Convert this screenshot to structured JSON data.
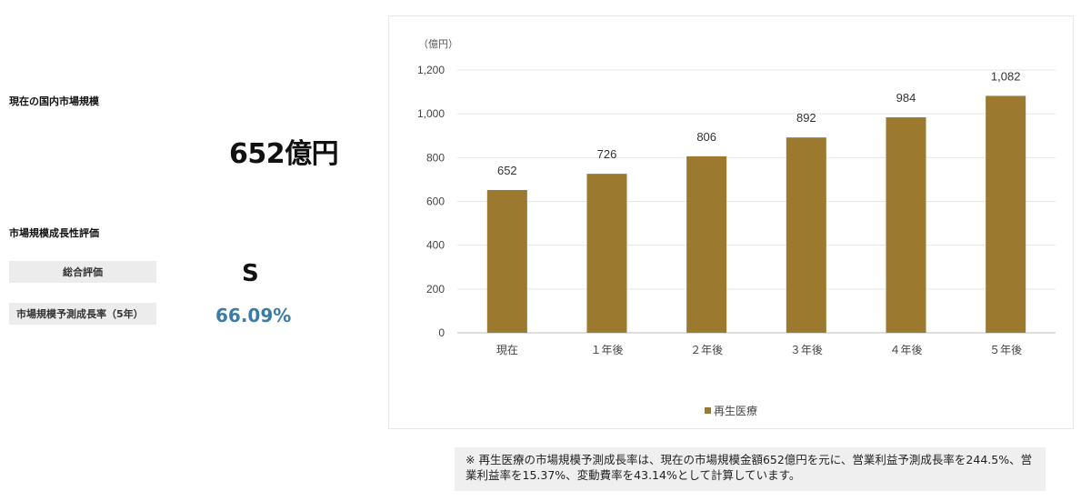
{
  "market": {
    "size_title": "現在の国内市場規模",
    "size_value": "652億円",
    "growth_title": "市場規模成長性評価",
    "overall_label": "総合評価",
    "overall_grade": "S",
    "growth_rate_label": "市場規模予測成長率（5年）",
    "growth_rate_value": "66.09%"
  },
  "chart_data": {
    "type": "bar",
    "unit_label": "（億円）",
    "categories": [
      "現在",
      "１年後",
      "２年後",
      "３年後",
      "４年後",
      "５年後"
    ],
    "series": [
      {
        "name": "再生医療",
        "values": [
          652,
          726,
          806,
          892,
          984,
          1082
        ]
      }
    ],
    "data_labels": [
      "652",
      "726",
      "806",
      "892",
      "984",
      "1,082"
    ],
    "y_ticks": [
      "0",
      "200",
      "400",
      "600",
      "800",
      "1,000",
      "1,200"
    ],
    "ylim": [
      0,
      1200
    ],
    "grid": true,
    "legend_position": "bottom-center",
    "bar_color": "#9b7a2f"
  },
  "note": {
    "text": "※ 再生医療の市場規模予測成長率は、現在の市場規模金額652億円を元に、営業利益予測成長率を244.5%、営業利益率を15.37%、変動費率を43.14%として計算しています。"
  }
}
